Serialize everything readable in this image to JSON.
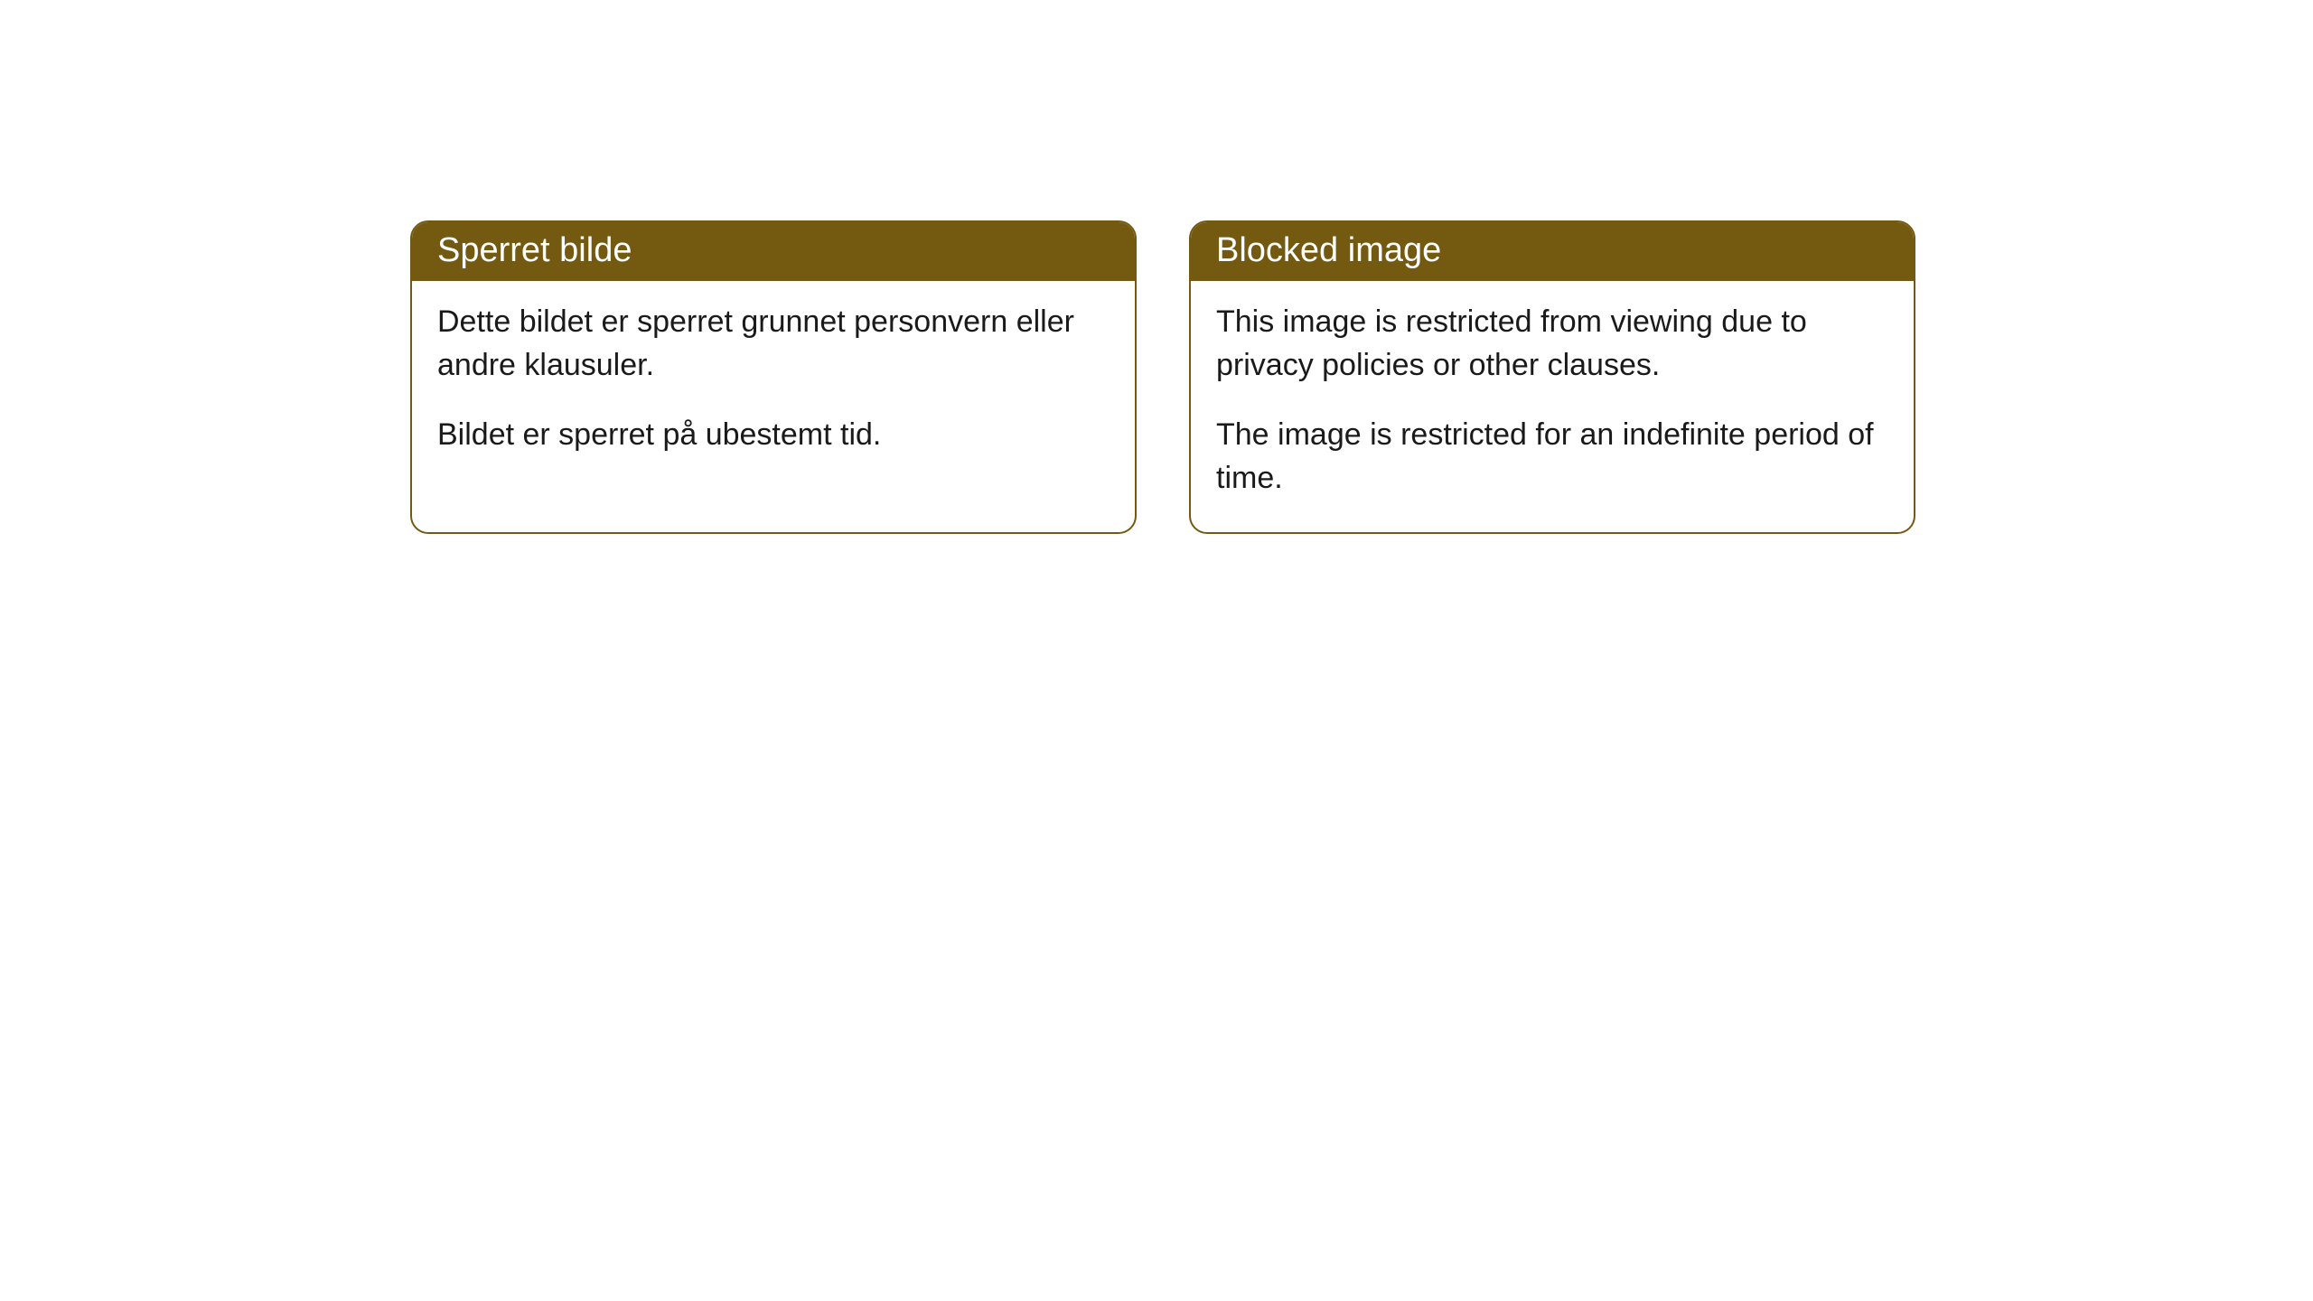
{
  "cards": [
    {
      "title": "Sperret bilde",
      "paragraph1": "Dette bildet er sperret grunnet personvern eller andre klausuler.",
      "paragraph2": "Bildet er sperret på ubestemt tid."
    },
    {
      "title": "Blocked image",
      "paragraph1": "This image is restricted from viewing due to privacy policies or other clauses.",
      "paragraph2": "The image is restricted for an indefinite period of time."
    }
  ],
  "style": {
    "header_background": "#745a10",
    "header_text_color": "#ffffff",
    "border_color": "#745a10",
    "body_background": "#ffffff",
    "body_text_color": "#1a1a1a",
    "border_radius": 20,
    "header_fontsize": 38,
    "body_fontsize": 34
  }
}
